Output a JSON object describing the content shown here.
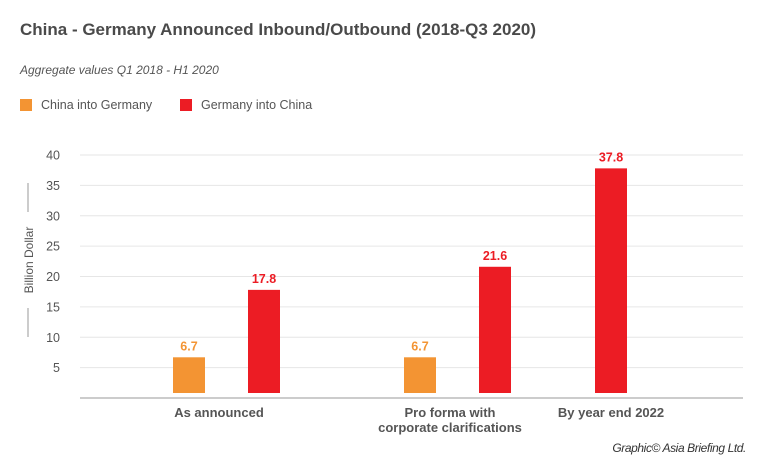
{
  "chart_data": {
    "type": "bar",
    "title": "China - Germany Announced Inbound/Outbound (2018-Q3 2020)",
    "subtitle": "Aggregate values Q1 2018 - H1 2020",
    "ylabel": "Billion Dollar",
    "ylim": [
      0,
      40
    ],
    "yticks": [
      5,
      10,
      15,
      20,
      25,
      30,
      35,
      40
    ],
    "grid": true,
    "legend_position": "top-left",
    "categories": [
      [
        "As announced"
      ],
      [
        "Pro forma with",
        "corporate clarifications"
      ],
      [
        "By year end 2022"
      ]
    ],
    "series": [
      {
        "name": "China into Germany",
        "color": "#f39433",
        "values": [
          6.7,
          6.7,
          null
        ],
        "labels": [
          "6.7",
          "6.7",
          null
        ]
      },
      {
        "name": "Germany into China",
        "color": "#ec1c24",
        "values": [
          17.8,
          21.6,
          37.8
        ],
        "labels": [
          "17.8",
          "21.6",
          "37.8"
        ]
      }
    ]
  },
  "credit": "Graphic© Asia Briefing Ltd."
}
